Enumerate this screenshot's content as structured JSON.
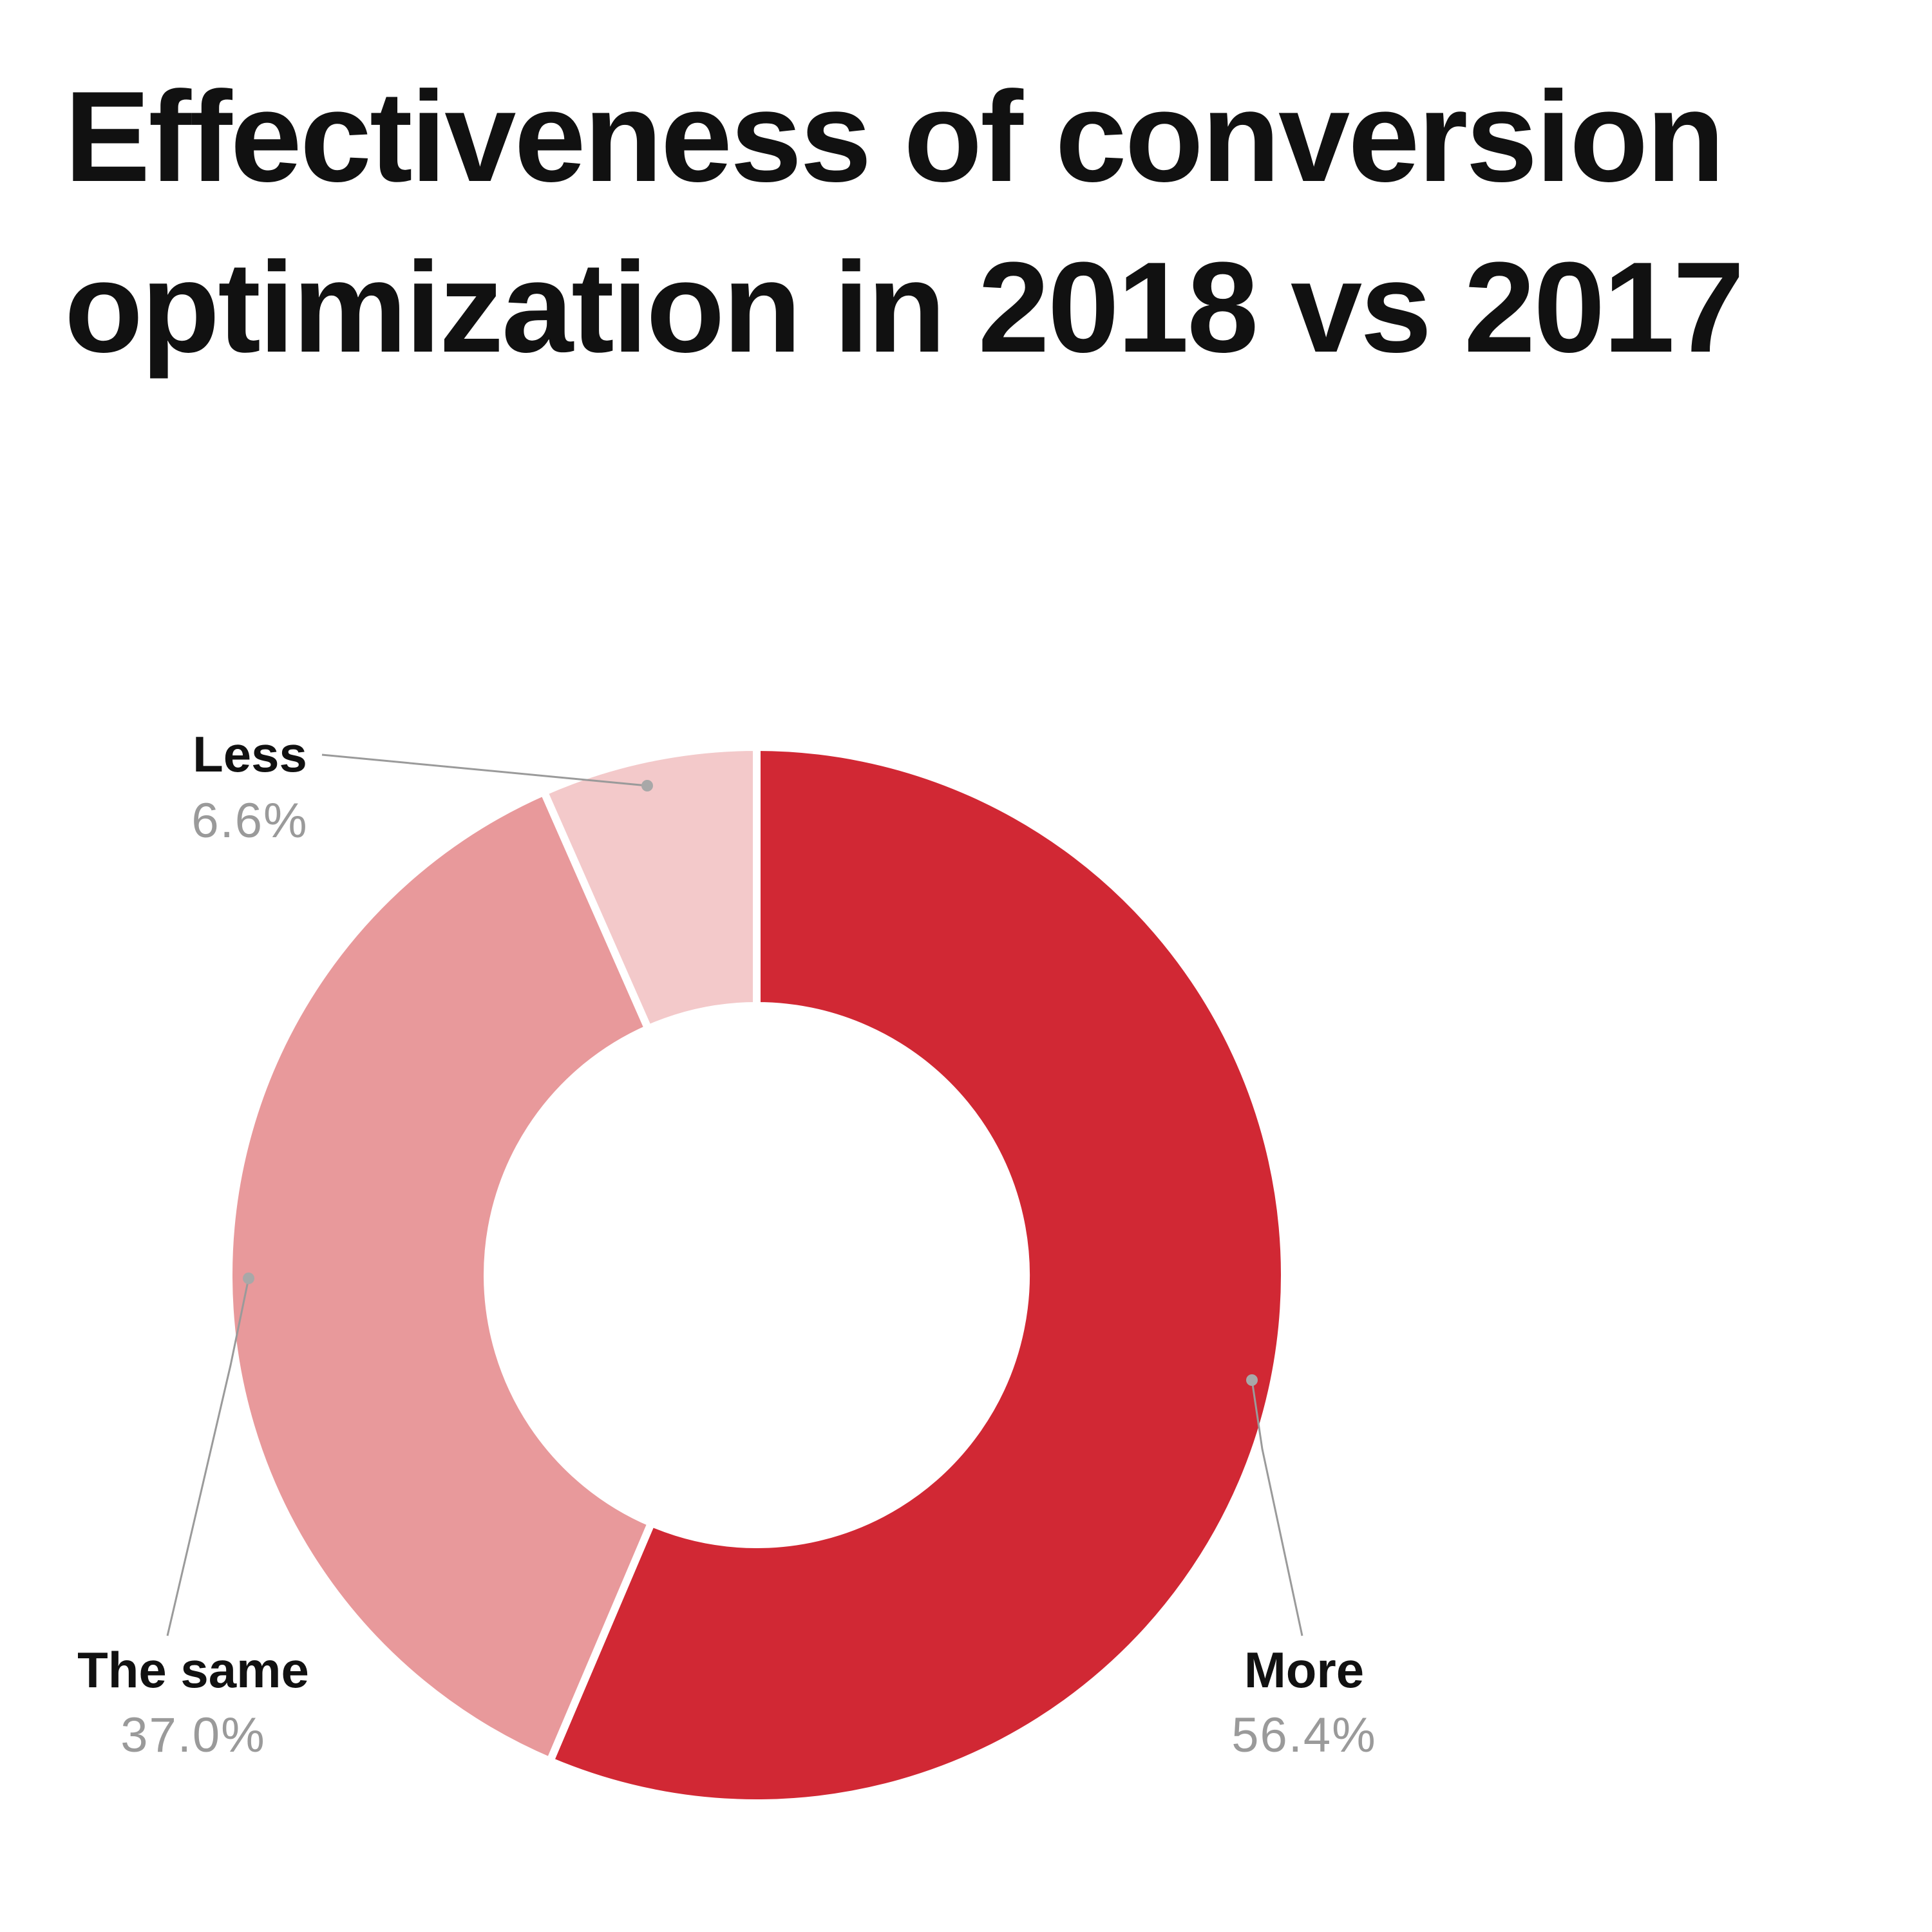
{
  "chart_data": {
    "type": "pie",
    "variant": "donut",
    "title": "Effectiveness of conversion optimization in 2018 vs 2017",
    "title_lines": [
      "Effectiveness of conversion",
      "optimization in 2018 vs 2017"
    ],
    "slices": [
      {
        "key": "more",
        "label": "More",
        "value": 56.4,
        "value_label": "56.4%",
        "color": "#d12834"
      },
      {
        "key": "same",
        "label": "The same",
        "value": 37.0,
        "value_label": "37.0%",
        "color": "#e8999b"
      },
      {
        "key": "less",
        "label": "Less",
        "value": 6.6,
        "value_label": "6.6%",
        "color": "#f3c9ca"
      }
    ],
    "start_angle": "12 o'clock",
    "direction": "clockwise",
    "legend": "none",
    "label_style": "callout"
  }
}
